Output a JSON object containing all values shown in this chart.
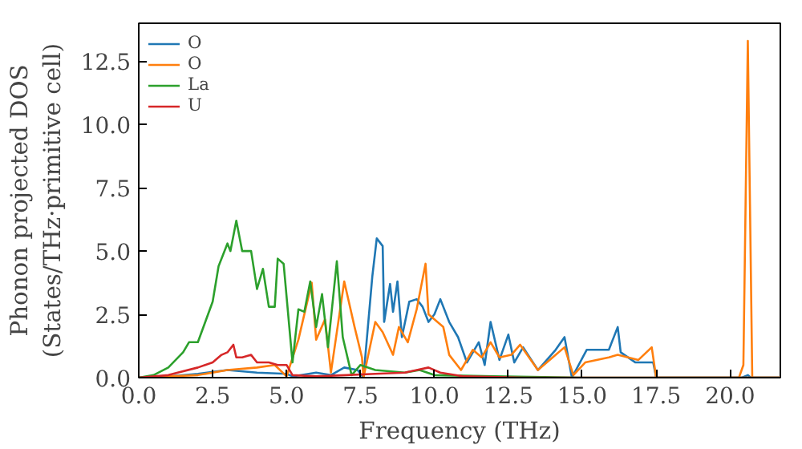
{
  "chart_data": {
    "type": "line",
    "xlabel": "Frequency (THz)",
    "ylabel": "Phonon projected DOS\n(States/THz·primitive cell)",
    "xlim": [
      0,
      21.7
    ],
    "ylim": [
      0,
      14.0
    ],
    "xticks": [
      {
        "value": 0,
        "label": "0.0"
      },
      {
        "value": 2.5,
        "label": "2.5"
      },
      {
        "value": 5,
        "label": "5.0"
      },
      {
        "value": 7.5,
        "label": "7.5"
      },
      {
        "value": 10,
        "label": "10.0"
      },
      {
        "value": 12.5,
        "label": "12.5"
      },
      {
        "value": 15,
        "label": "15.0"
      },
      {
        "value": 17.5,
        "label": "17.5"
      },
      {
        "value": 20,
        "label": "20.0"
      }
    ],
    "yticks": [
      {
        "value": 0,
        "label": "0.0"
      },
      {
        "value": 2.5,
        "label": "2.5"
      },
      {
        "value": 5,
        "label": "5.0"
      },
      {
        "value": 7.5,
        "label": "7.5"
      },
      {
        "value": 10,
        "label": "10.0"
      },
      {
        "value": 12.5,
        "label": "12.5"
      }
    ],
    "grid": false,
    "legend": "top left",
    "series": [
      {
        "name": "O",
        "color": "#1f77b4",
        "x": [
          0,
          1,
          2,
          3,
          4,
          5,
          5.2,
          6,
          6.5,
          6.95,
          7.4,
          7.6,
          7.9,
          8.05,
          8.25,
          8.3,
          8.5,
          8.6,
          8.75,
          8.9,
          9.15,
          9.4,
          9.6,
          9.8,
          10.0,
          10.2,
          10.5,
          10.8,
          11.1,
          11.5,
          11.7,
          11.9,
          12.2,
          12.5,
          12.7,
          13.0,
          13.5,
          14.1,
          14.4,
          14.65,
          15.15,
          15.9,
          16.2,
          16.3,
          16.8,
          17.4,
          17.5,
          20.4,
          20.6,
          20.7,
          21.7
        ],
        "values": [
          0,
          0.05,
          0.15,
          0.3,
          0.2,
          0.15,
          0.05,
          0.2,
          0.1,
          0.4,
          0.3,
          0,
          4.0,
          5.5,
          5.2,
          2.2,
          3.7,
          2.6,
          3.8,
          1.6,
          3.0,
          3.1,
          2.8,
          2.2,
          2.5,
          3.1,
          2.2,
          1.6,
          0.6,
          1.4,
          0.5,
          2.2,
          0.7,
          1.7,
          0.6,
          1.2,
          0.3,
          1.1,
          1.6,
          0,
          1.1,
          1.1,
          2.0,
          1.0,
          0.6,
          0.6,
          0,
          0,
          0.1,
          0,
          0
        ]
      },
      {
        "name": "O",
        "color": "#ff7f0e",
        "x": [
          0,
          2,
          3,
          4,
          4.6,
          5.0,
          5.4,
          5.85,
          6.0,
          6.3,
          6.5,
          6.95,
          7.3,
          7.55,
          7.6,
          8.0,
          8.25,
          8.6,
          8.8,
          9.1,
          9.4,
          9.7,
          9.8,
          10.3,
          10.5,
          10.9,
          11.3,
          11.6,
          11.9,
          12.2,
          12.6,
          12.9,
          13.5,
          14.0,
          14.4,
          14.7,
          15.1,
          15.9,
          16.2,
          16.9,
          17.35,
          17.5,
          20.3,
          20.45,
          20.6,
          20.75,
          21.7
        ],
        "values": [
          0,
          0.1,
          0.3,
          0.4,
          0.5,
          0.05,
          1.5,
          3.75,
          1.5,
          2.3,
          0.2,
          3.8,
          2.0,
          0.8,
          0,
          2.2,
          1.8,
          0.9,
          2.0,
          1.4,
          2.7,
          4.5,
          2.5,
          2.0,
          0.9,
          0.3,
          1.1,
          0.8,
          1.4,
          0.8,
          0.9,
          1.3,
          0.3,
          0.8,
          1.2,
          0.1,
          0.6,
          0.8,
          0.9,
          0.7,
          1.2,
          0,
          0,
          0.5,
          13.3,
          0,
          0
        ]
      },
      {
        "name": "La",
        "color": "#2ca02c",
        "x": [
          0,
          0.5,
          1,
          1.5,
          1.7,
          2,
          2.5,
          2.7,
          3.0,
          3.1,
          3.3,
          3.5,
          3.8,
          4.0,
          4.2,
          4.4,
          4.6,
          4.7,
          4.9,
          5.2,
          5.4,
          5.6,
          5.8,
          6.0,
          6.2,
          6.4,
          6.7,
          6.9,
          7.2,
          7.5,
          8,
          9,
          9.5,
          10,
          12,
          15,
          21.7
        ],
        "values": [
          0,
          0.1,
          0.4,
          1.0,
          1.4,
          1.4,
          3.0,
          4.4,
          5.3,
          5.0,
          6.2,
          5.0,
          5.0,
          3.5,
          4.3,
          2.8,
          2.8,
          4.7,
          4.5,
          0.6,
          2.7,
          2.6,
          3.8,
          2.0,
          3.3,
          1.2,
          4.6,
          1.6,
          0.1,
          0.5,
          0.3,
          0.2,
          0.3,
          0.1,
          0.05,
          0,
          0
        ]
      },
      {
        "name": "U",
        "color": "#d62728",
        "x": [
          0,
          1,
          2,
          2.5,
          2.8,
          3.0,
          3.2,
          3.3,
          3.5,
          3.8,
          4.0,
          4.4,
          4.7,
          5.0,
          5.2,
          6,
          7,
          8,
          9,
          9.8,
          10.2,
          11,
          13,
          21.7
        ],
        "values": [
          0,
          0.1,
          0.4,
          0.6,
          0.9,
          1.0,
          1.3,
          0.8,
          0.8,
          0.9,
          0.6,
          0.6,
          0.5,
          0.5,
          0.1,
          0.05,
          0.1,
          0.15,
          0.2,
          0.4,
          0.2,
          0.05,
          0,
          0
        ]
      }
    ]
  }
}
